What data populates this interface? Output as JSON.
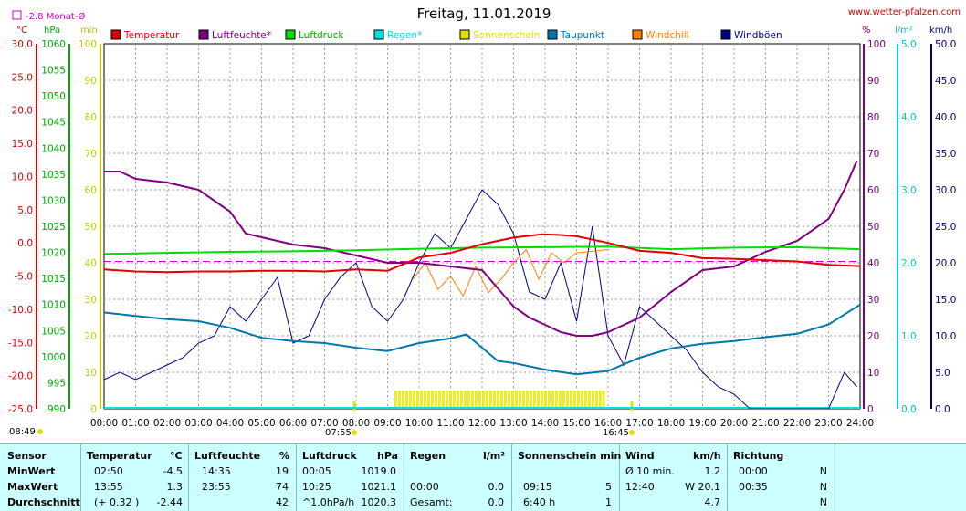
{
  "header": {
    "title": "Freitag, 11.01.2019",
    "site": "www.wetter-pfalzen.com",
    "monthly_avg": "-2.8 Monat-Ø"
  },
  "axes": {
    "temp_unit": "°C",
    "press_unit": "hPa",
    "sun_unit": "min",
    "pct_unit": "%",
    "rain_unit": "l/m²",
    "wind_unit": "km/h",
    "temp_ticks": [
      "30.0",
      "25.0",
      "20.0",
      "15.0",
      "10.0",
      "5.0",
      "0.0",
      "-5.0",
      "-10.0",
      "-15.0",
      "-20.0",
      "-25.0"
    ],
    "press_ticks": [
      "1060",
      "1055",
      "1050",
      "1045",
      "1040",
      "1035",
      "1030",
      "1025",
      "1020",
      "1015",
      "1010",
      "1005",
      "1000",
      "995",
      "990"
    ],
    "sun_ticks": [
      "100",
      "90",
      "80",
      "70",
      "60",
      "50",
      "40",
      "30",
      "20",
      "10",
      "0"
    ],
    "pct_ticks": [
      "100",
      "90",
      "80",
      "70",
      "60",
      "50",
      "40",
      "30",
      "20",
      "10",
      "0"
    ],
    "rain_ticks": [
      "5.0",
      "4.0",
      "3.0",
      "2.0",
      "1.0",
      "0.0"
    ],
    "wind_ticks": [
      "50.0",
      "45.0",
      "40.0",
      "35.0",
      "30.0",
      "25.0",
      "20.0",
      "15.0",
      "10.0",
      "5.0",
      "0.0"
    ],
    "time_ticks": [
      "00:00",
      "01:00",
      "02:00",
      "03:00",
      "04:00",
      "05:00",
      "06:00",
      "07:00",
      "08:00",
      "09:00",
      "10:00",
      "11:00",
      "12:00",
      "13:00",
      "14:00",
      "15:00",
      "16:00",
      "17:00",
      "18:00",
      "19:00",
      "20:00",
      "21:00",
      "22:00",
      "23:00",
      "24:00"
    ]
  },
  "markers": {
    "sunrise": "08:49",
    "sunrise_chart": "07:55",
    "sunset": "16:45"
  },
  "legend": [
    {
      "name": "Temperatur",
      "color": "#e00000"
    },
    {
      "name": "Luftfeuchte*",
      "color": "#800080"
    },
    {
      "name": "Luftdruck",
      "color": "#00dd00"
    },
    {
      "name": "Regen*",
      "color": "#00e0e0"
    },
    {
      "name": "Sonnenschein",
      "color": "#e0e000"
    },
    {
      "name": "Taupunkt",
      "color": "#0077aa"
    },
    {
      "name": "Windchill",
      "color": "#ff8000"
    },
    {
      "name": "Windböen",
      "color": "#000080"
    }
  ],
  "chart_data": {
    "type": "line",
    "x_label_unit": "hours",
    "xlim": [
      0,
      24
    ],
    "series": [
      {
        "name": "Temperatur",
        "unit": "°C",
        "x": [
          0,
          1,
          2,
          3,
          4,
          5,
          6,
          7,
          8,
          9,
          10,
          11,
          12,
          13,
          13.9,
          14.5,
          15,
          16,
          17,
          18,
          19,
          20,
          21,
          22,
          23,
          24
        ],
        "y": [
          -4.0,
          -4.3,
          -4.4,
          -4.3,
          -4.3,
          -4.2,
          -4.2,
          -4.3,
          -4.0,
          -4.2,
          -2.2,
          -1.5,
          -0.2,
          0.8,
          1.3,
          1.2,
          1.0,
          0.0,
          -1.2,
          -1.5,
          -2.3,
          -2.4,
          -2.6,
          -2.8,
          -3.3,
          -3.5
        ]
      },
      {
        "name": "Luftfeuchte*",
        "unit": "%",
        "x": [
          0,
          0.5,
          1,
          2,
          3,
          3.5,
          4,
          4.5,
          5,
          6,
          7,
          8,
          9,
          10,
          11,
          12,
          12.5,
          13,
          13.5,
          14,
          14.5,
          15,
          15.5,
          16,
          17,
          18,
          19,
          20,
          21,
          22,
          23,
          23.5,
          23.9
        ],
        "y": [
          65,
          65,
          63,
          62,
          60,
          57,
          54,
          48,
          47,
          45,
          44,
          42,
          40,
          40,
          39,
          38,
          33,
          28,
          25,
          23,
          21,
          20,
          20,
          21,
          25,
          32,
          38,
          39,
          43,
          46,
          52,
          60,
          68
        ]
      },
      {
        "name": "Luftdruck",
        "unit": "hPa",
        "x": [
          0,
          2,
          4,
          6,
          8,
          10,
          12,
          14,
          16,
          18,
          20,
          22,
          24
        ],
        "y": [
          1019.7,
          1019.9,
          1020.1,
          1020.2,
          1020.4,
          1020.7,
          1020.9,
          1021.0,
          1021.1,
          1020.6,
          1020.9,
          1021.0,
          1020.6
        ]
      },
      {
        "name": "Taupunkt",
        "unit": "°C",
        "x": [
          0,
          1,
          2,
          3,
          4,
          5,
          6,
          7,
          8,
          9,
          10,
          11,
          11.5,
          12,
          12.5,
          13,
          14,
          15,
          16,
          17,
          18,
          19,
          20,
          21,
          22,
          23,
          23.5,
          24
        ],
        "y": [
          -10.5,
          -11.0,
          -11.5,
          -11.8,
          -12.8,
          -14.3,
          -14.8,
          -15.1,
          -15.8,
          -16.3,
          -15.1,
          -14.4,
          -13.8,
          -15.8,
          -17.8,
          -18.1,
          -19.1,
          -19.8,
          -19.3,
          -17.3,
          -15.9,
          -15.2,
          -14.8,
          -14.2,
          -13.7,
          -12.3,
          -10.8,
          -9.3
        ]
      },
      {
        "name": "Windchill",
        "unit": "°C",
        "x": [
          9.8,
          10.2,
          10.6,
          11.0,
          11.4,
          11.8,
          12.2,
          12.6,
          13.0,
          13.4,
          13.8,
          14.2,
          14.6,
          15.0,
          16.0
        ],
        "y": [
          -5.5,
          -3.0,
          -7.0,
          -5.0,
          -8.0,
          -3.5,
          -7.5,
          -5.5,
          -3.0,
          -1.0,
          -5.5,
          -1.5,
          -3.0,
          -1.5,
          -1.0
        ]
      },
      {
        "name": "Windböen",
        "unit": "km/h",
        "x": [
          0,
          0.5,
          1,
          1.5,
          2,
          2.5,
          3,
          3.5,
          4,
          4.5,
          5,
          5.5,
          6,
          6.5,
          7,
          7.5,
          8,
          8.5,
          9,
          9.5,
          10,
          10.5,
          11,
          11.5,
          12,
          12.5,
          13,
          13.5,
          14,
          14.5,
          15,
          15.5,
          16,
          16.5,
          17,
          17.5,
          18,
          18.5,
          19,
          19.5,
          20,
          20.5,
          21,
          21.5,
          22,
          23,
          23.5,
          23.9
        ],
        "y": [
          4,
          5,
          4,
          5,
          6,
          7,
          9,
          10,
          14,
          12,
          15,
          18,
          9,
          10,
          15,
          18,
          20,
          14,
          12,
          15,
          20,
          24,
          22,
          26,
          30,
          28,
          24,
          16,
          15,
          20,
          12,
          25,
          10,
          6,
          14,
          12,
          10,
          8,
          5,
          3,
          2,
          0,
          0,
          0,
          0,
          0,
          5,
          3
        ]
      },
      {
        "name": "Sonnenschein",
        "unit": "min",
        "x": [
          9.2,
          9.5,
          10,
          10.5,
          11,
          11.5,
          12,
          12.5,
          13,
          13.5,
          14,
          14.5,
          15,
          15.5,
          15.9
        ],
        "y": [
          5,
          5,
          5,
          5,
          5,
          5,
          5,
          5,
          5,
          5,
          5,
          5,
          5,
          5,
          5
        ]
      },
      {
        "name": "Regen*",
        "unit": "l/m²",
        "x": [
          0,
          24
        ],
        "y": [
          0,
          0
        ]
      }
    ],
    "monthly_avg_line": -2.8,
    "ylim_temp": [
      -25,
      30
    ]
  },
  "summary": {
    "headers": {
      "sensor": "Sensor",
      "temp": "Temperatur",
      "temp_u": "°C",
      "hum": "Luftfeuchte",
      "hum_u": "%",
      "press": "Luftdruck",
      "press_u": "hPa",
      "rain": "Regen",
      "rain_u": "l/m²",
      "sun": "Sonnenschein min",
      "wind": "Wind",
      "wind_u": "km/h",
      "dir": "Richtung"
    },
    "rows": [
      {
        "label": "MinWert",
        "t_time": "02:50",
        "t_val": "-4.5",
        "h_time": "14:35",
        "h_val": "19",
        "p_time": "00:05",
        "p_val": "1019.0",
        "r_time": "",
        "r_val": "",
        "s_time": "",
        "s_val": "",
        "w_label": "Ø 10 min.",
        "w_val": "1.2",
        "d_time": "00:00",
        "d_val": "N"
      },
      {
        "label": "MaxWert",
        "t_time": "13:55",
        "t_val": "1.3",
        "h_time": "23:55",
        "h_val": "74",
        "p_time": "10:25",
        "p_val": "1021.1",
        "r_time": "00:00",
        "r_val": "0.0",
        "s_time": "09:15",
        "s_val": "5",
        "w_label": "12:40",
        "w_val": "W 20.1",
        "d_time": "00:35",
        "d_val": "N"
      },
      {
        "label": "Durchschnitt",
        "t_time": "(+ 0.32 )",
        "t_val": "-2.44",
        "h_time": "",
        "h_val": "42",
        "p_time": "^1.0hPa/h",
        "p_val": "1020.3",
        "r_time": "Gesamt:",
        "r_val": "0.0",
        "s_time": "6:40 h",
        "s_val": "1",
        "w_label": "",
        "w_val": "4.7",
        "d_time": "",
        "d_val": "N"
      }
    ]
  }
}
